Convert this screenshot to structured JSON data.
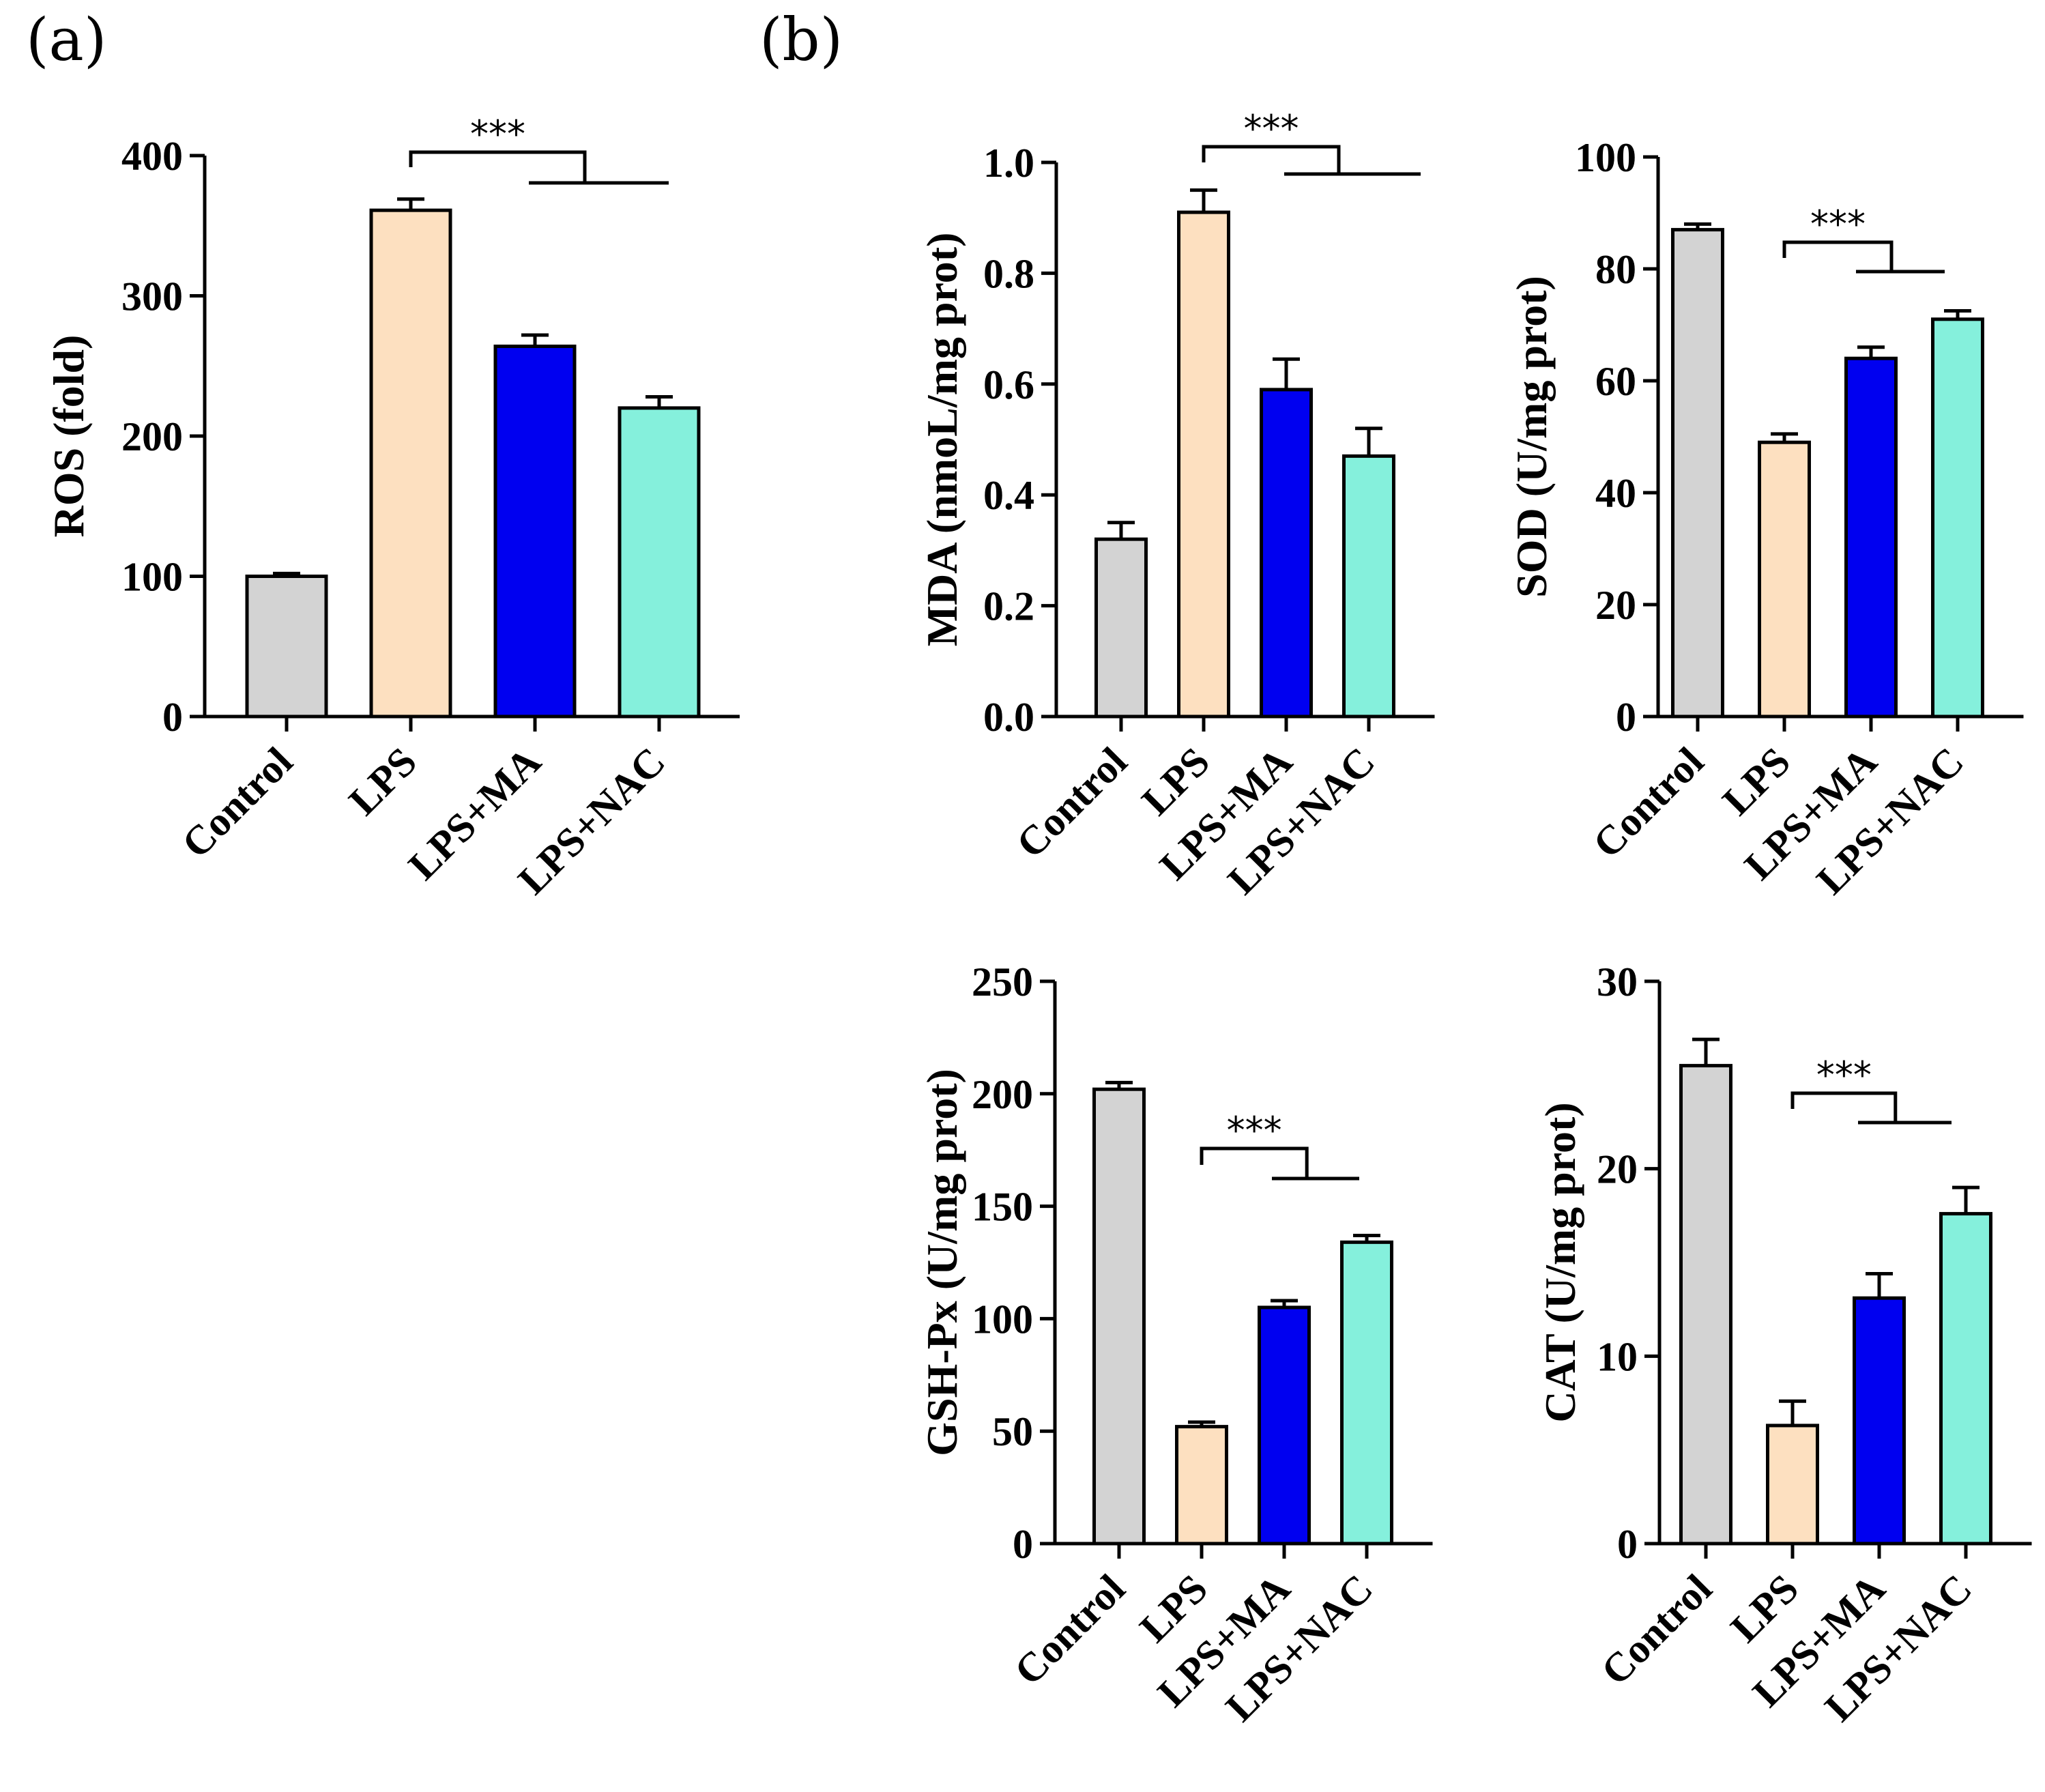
{
  "panel_labels": {
    "a": "(a)",
    "b": "(b)"
  },
  "chart_data": [
    {
      "type": "bar",
      "panel": "a",
      "ylabel": "ROS (fold)",
      "categories": [
        "Control",
        "LPS",
        "LPS+MA",
        "LPS+NAC"
      ],
      "values": [
        100,
        361,
        264,
        220
      ],
      "errors": [
        2,
        8,
        8,
        8
      ],
      "colors": [
        "#d3d3d3",
        "#fde0c0",
        "#0000f0",
        "#85f0dc"
      ],
      "ylim": [
        0,
        400
      ],
      "yticks": [
        0,
        100,
        200,
        300,
        400
      ],
      "ytick_labels": [
        "0",
        "100",
        "200",
        "300",
        "400"
      ],
      "significance": {
        "label": "***",
        "from": 1,
        "to": [
          2,
          3
        ]
      }
    },
    {
      "type": "bar",
      "panel": "b",
      "ylabel": "MDA (nmoL/mg prot)",
      "categories": [
        "Control",
        "LPS",
        "LPS+MA",
        "LPS+NAC"
      ],
      "values": [
        0.32,
        0.91,
        0.59,
        0.47
      ],
      "errors": [
        0.03,
        0.04,
        0.055,
        0.05
      ],
      "colors": [
        "#d3d3d3",
        "#fde0c0",
        "#0000f0",
        "#85f0dc"
      ],
      "ylim": [
        0,
        1.0
      ],
      "yticks": [
        0,
        0.2,
        0.4,
        0.6,
        0.8,
        1.0
      ],
      "ytick_labels": [
        "0.0",
        "0.2",
        "0.4",
        "0.6",
        "0.8",
        "1.0"
      ],
      "significance": {
        "label": "***",
        "from": 1,
        "to": [
          2,
          3
        ]
      }
    },
    {
      "type": "bar",
      "panel": "b",
      "ylabel": "SOD (U/mg prot)",
      "categories": [
        "Control",
        "LPS",
        "LPS+MA",
        "LPS+NAC"
      ],
      "values": [
        87,
        49,
        64,
        71
      ],
      "errors": [
        1,
        1.5,
        2,
        1.5
      ],
      "colors": [
        "#d3d3d3",
        "#fde0c0",
        "#0000f0",
        "#85f0dc"
      ],
      "ylim": [
        0,
        100
      ],
      "yticks": [
        0,
        20,
        40,
        60,
        80,
        100
      ],
      "ytick_labels": [
        "0",
        "20",
        "40",
        "60",
        "80",
        "100"
      ],
      "significance": {
        "label": "***",
        "from": 1,
        "to": [
          2,
          3
        ]
      }
    },
    {
      "type": "bar",
      "panel": "b",
      "ylabel": "GSH-Px (U/mg prot)",
      "categories": [
        "Control",
        "LPS",
        "LPS+MA",
        "LPS+NAC"
      ],
      "values": [
        202,
        52,
        105,
        134
      ],
      "errors": [
        3,
        2,
        3,
        3
      ],
      "colors": [
        "#d3d3d3",
        "#fde0c0",
        "#0000f0",
        "#85f0dc"
      ],
      "ylim": [
        0,
        250
      ],
      "yticks": [
        0,
        50,
        100,
        150,
        200,
        250
      ],
      "ytick_labels": [
        "0",
        "50",
        "100",
        "150",
        "200",
        "250"
      ],
      "significance": {
        "label": "***",
        "from": 1,
        "to": [
          2,
          3
        ]
      }
    },
    {
      "type": "bar",
      "panel": "b",
      "ylabel": "CAT (U/mg prot)",
      "categories": [
        "Control",
        "LPS",
        "LPS+MA",
        "LPS+NAC"
      ],
      "values": [
        25.5,
        6.3,
        13.1,
        17.6
      ],
      "errors": [
        1.4,
        1.3,
        1.3,
        1.4
      ],
      "colors": [
        "#d3d3d3",
        "#fde0c0",
        "#0000f0",
        "#85f0dc"
      ],
      "ylim": [
        0,
        30
      ],
      "yticks": [
        0,
        10,
        20,
        30
      ],
      "ytick_labels": [
        "0",
        "10",
        "20",
        "30"
      ],
      "significance": {
        "label": "***",
        "from": 1,
        "to": [
          2,
          3
        ]
      }
    }
  ]
}
